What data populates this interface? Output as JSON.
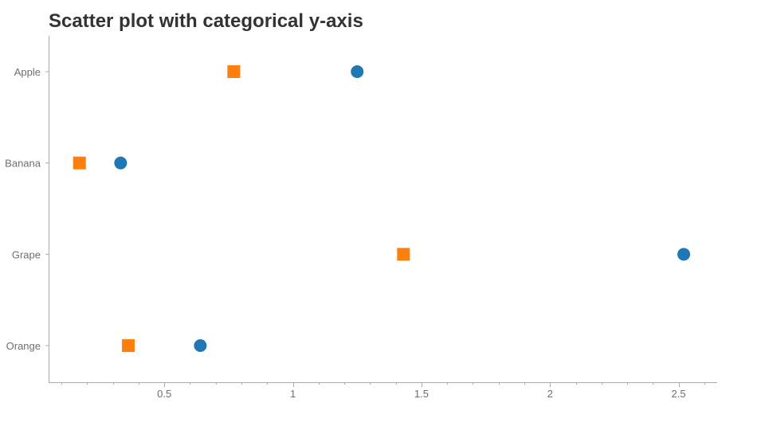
{
  "chart_data": {
    "type": "scatter",
    "title": "Scatter plot with categorical y-axis",
    "xlabel": "",
    "ylabel": "",
    "xlim": [
      0.05,
      2.65
    ],
    "x_ticks": [
      0.5,
      1,
      1.5,
      2,
      2.5
    ],
    "x_tick_labels": [
      "0.5",
      "1",
      "1.5",
      "2",
      "2.5"
    ],
    "categories": [
      "Apple",
      "Banana",
      "Grape",
      "Orange"
    ],
    "grid": false,
    "legend": "none",
    "series": [
      {
        "marker": "circle",
        "color": "#1f77b4",
        "points": [
          {
            "x": 1.25,
            "y": "Apple"
          },
          {
            "x": 0.33,
            "y": "Banana"
          },
          {
            "x": 2.52,
            "y": "Grape"
          },
          {
            "x": 0.64,
            "y": "Orange"
          }
        ]
      },
      {
        "marker": "square",
        "color": "#ff7f0e",
        "points": [
          {
            "x": 0.77,
            "y": "Apple"
          },
          {
            "x": 0.17,
            "y": "Banana"
          },
          {
            "x": 1.43,
            "y": "Grape"
          },
          {
            "x": 0.36,
            "y": "Orange"
          }
        ]
      }
    ]
  }
}
